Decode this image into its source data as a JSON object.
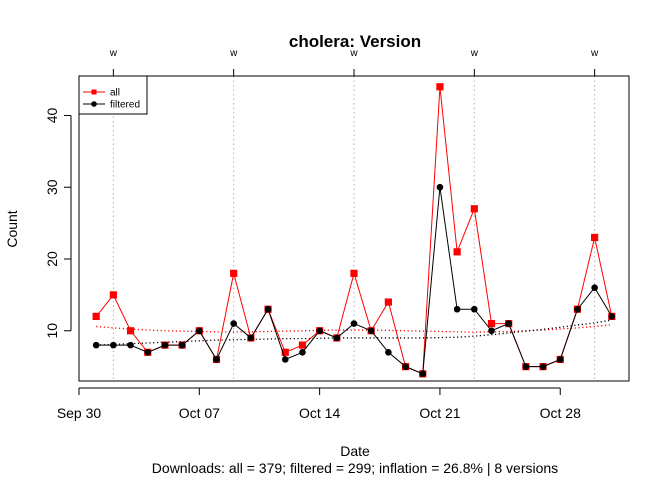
{
  "chart_data": {
    "type": "line",
    "title": "cholera: Version",
    "xlabel": "Date",
    "ylabel": "Count",
    "footer": "Downloads: all = 379; filtered = 299; inflation = 26.8% | 8 versions",
    "x_dates": [
      "Oct 01",
      "Oct 02",
      "Oct 03",
      "Oct 04",
      "Oct 05",
      "Oct 06",
      "Oct 07",
      "Oct 08",
      "Oct 09",
      "Oct 10",
      "Oct 11",
      "Oct 12",
      "Oct 13",
      "Oct 14",
      "Oct 15",
      "Oct 16",
      "Oct 17",
      "Oct 18",
      "Oct 19",
      "Oct 20",
      "Oct 21",
      "Oct 22",
      "Oct 23",
      "Oct 24",
      "Oct 25",
      "Oct 26",
      "Oct 27",
      "Oct 28",
      "Oct 29",
      "Oct 30",
      "Oct 31"
    ],
    "x_ticks": [
      {
        "label": "Sep 30",
        "day": 0
      },
      {
        "label": "Oct 07",
        "day": 7
      },
      {
        "label": "Oct 14",
        "day": 14
      },
      {
        "label": "Oct 21",
        "day": 21
      },
      {
        "label": "Oct 28",
        "day": 28
      }
    ],
    "xlim_day": [
      0,
      32
    ],
    "y_ticks": [
      10,
      20,
      30,
      40
    ],
    "ylim": [
      3,
      45.5
    ],
    "series": [
      {
        "name": "all",
        "color": "#ff0000",
        "marker": "square",
        "values": [
          12,
          15,
          10,
          7,
          8,
          8,
          10,
          6,
          18,
          9,
          13,
          7,
          8,
          10,
          9,
          18,
          10,
          14,
          5,
          4,
          44,
          21,
          27,
          11,
          11,
          5,
          5,
          6,
          13,
          23,
          12
        ]
      },
      {
        "name": "filtered",
        "color": "#000000",
        "marker": "circle",
        "values": [
          8,
          8,
          8,
          7,
          8,
          8,
          10,
          6,
          11,
          9,
          13,
          6,
          7,
          10,
          9,
          11,
          10,
          7,
          5,
          4,
          30,
          13,
          13,
          10,
          11,
          5,
          5,
          6,
          13,
          16,
          12
        ]
      }
    ],
    "trend_all": [
      10.6,
      10.4,
      10.25,
      10.1,
      10.0,
      9.95,
      9.9,
      9.85,
      9.85,
      9.85,
      9.9,
      9.95,
      10.0,
      10.05,
      10.1,
      10.1,
      10.1,
      10.05,
      10.0,
      9.95,
      9.9,
      9.85,
      9.8,
      9.85,
      9.9,
      10.0,
      10.1,
      10.25,
      10.4,
      10.6,
      10.85
    ],
    "trend_filtered": [
      8.0,
      8.1,
      8.2,
      8.3,
      8.4,
      8.5,
      8.6,
      8.7,
      8.75,
      8.8,
      8.85,
      8.9,
      8.9,
      8.95,
      9.0,
      9.0,
      9.0,
      9.0,
      9.0,
      9.0,
      9.05,
      9.1,
      9.25,
      9.45,
      9.7,
      9.95,
      10.2,
      10.5,
      10.8,
      11.1,
      11.5
    ],
    "version_markers": [
      {
        "label": "w",
        "day": 2
      },
      {
        "label": "w",
        "day": 9
      },
      {
        "label": "w",
        "day": 16
      },
      {
        "label": "w",
        "day": 23
      },
      {
        "label": "w",
        "day": 30
      }
    ],
    "legend_position": "top-left",
    "grid": false
  }
}
